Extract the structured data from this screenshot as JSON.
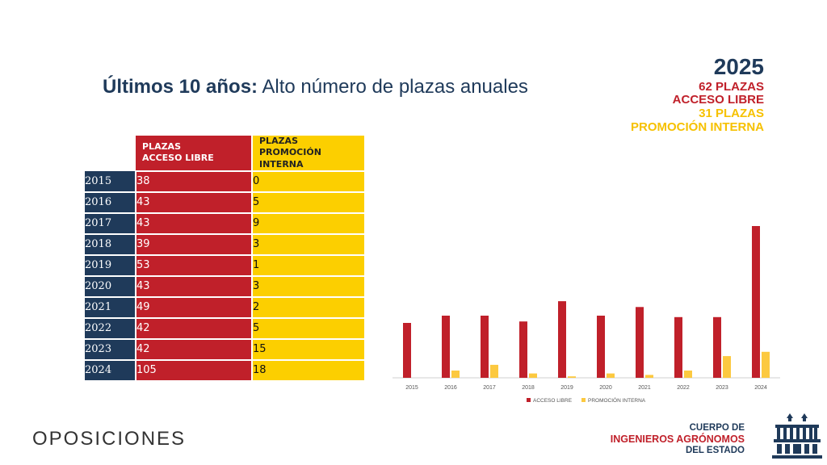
{
  "title": {
    "bold": "Últimos 10 años:",
    "rest": " Alto número de plazas anuales"
  },
  "highlight": {
    "year": "2025",
    "line1": "62 PLAZAS",
    "line2": "ACCESO LIBRE",
    "line3": "31 PLAZAS",
    "line4": "PROMOCIÓN INTERNA"
  },
  "table": {
    "header_libre_1": "PLAZAS",
    "header_libre_2": "ACCESO LIBRE",
    "header_interna_1": "PLAZAS",
    "header_interna_2": "PROMOCIÓN INTERNA",
    "rows": [
      {
        "year": "2015",
        "libre": "38",
        "interna": "0"
      },
      {
        "year": "2016",
        "libre": "43",
        "interna": "5"
      },
      {
        "year": "2017",
        "libre": "43",
        "interna": "9"
      },
      {
        "year": "2018",
        "libre": "39",
        "interna": "3"
      },
      {
        "year": "2019",
        "libre": "53",
        "interna": "1"
      },
      {
        "year": "2020",
        "libre": "43",
        "interna": "3"
      },
      {
        "year": "2021",
        "libre": "49",
        "interna": "2"
      },
      {
        "year": "2022",
        "libre": "42",
        "interna": "5"
      },
      {
        "year": "2023",
        "libre": "42",
        "interna": "15"
      },
      {
        "year": "2024",
        "libre": "105",
        "interna": "18"
      }
    ]
  },
  "chart_data": {
    "type": "bar",
    "categories": [
      "2015",
      "2016",
      "2017",
      "2018",
      "2019",
      "2020",
      "2021",
      "2022",
      "2023",
      "2024"
    ],
    "series": [
      {
        "name": "ACCESO LIBRE",
        "values": [
          38,
          43,
          43,
          39,
          53,
          43,
          49,
          42,
          42,
          105
        ],
        "color": "#c0202a"
      },
      {
        "name": "PROMOCIÓN INTERNA",
        "values": [
          0,
          5,
          9,
          3,
          1,
          3,
          2,
          5,
          15,
          18
        ],
        "color": "#fcc940"
      }
    ],
    "ylim": [
      0,
      105
    ],
    "legend": "bottom",
    "grid": false
  },
  "footer": {
    "left": "OPOSICIONES",
    "logo_line1": "CUERPO DE",
    "logo_line2": "INGENIEROS AGRÓNOMOS",
    "logo_line3": "DEL ESTADO"
  }
}
